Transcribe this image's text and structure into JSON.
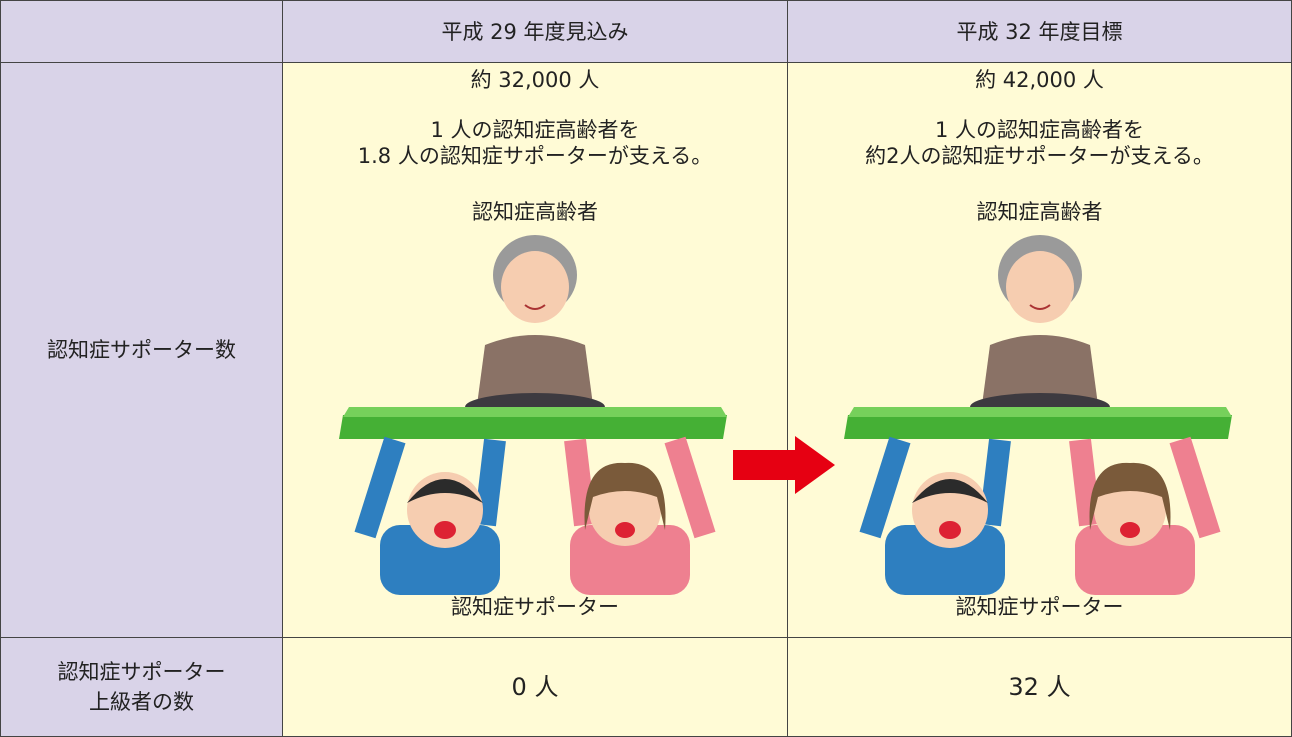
{
  "table": {
    "columns": [
      "平成 29 年度見込み",
      "平成 32 年度目標"
    ],
    "rows": [
      {
        "label": [
          "認知症サポーター数"
        ],
        "cells": [
          {
            "count": "約 32,000 人",
            "ratio": [
              "1 人の認知症高齢者を",
              "1.8 人の認知症サポーターが支える。"
            ],
            "top_caption": "認知症高齢者",
            "bottom_caption": "認知症サポーター"
          },
          {
            "count": "約 42,000 人",
            "ratio": [
              "1 人の認知症高齢者を",
              "約2人の認知症サポーターが支える。"
            ],
            "top_caption": "認知症高齢者",
            "bottom_caption": "認知症サポーター"
          }
        ]
      },
      {
        "label": [
          "認知症サポーター",
          "上級者の数"
        ],
        "cells": [
          {
            "count": "0 人"
          },
          {
            "count": "32 人"
          }
        ]
      }
    ]
  }
}
